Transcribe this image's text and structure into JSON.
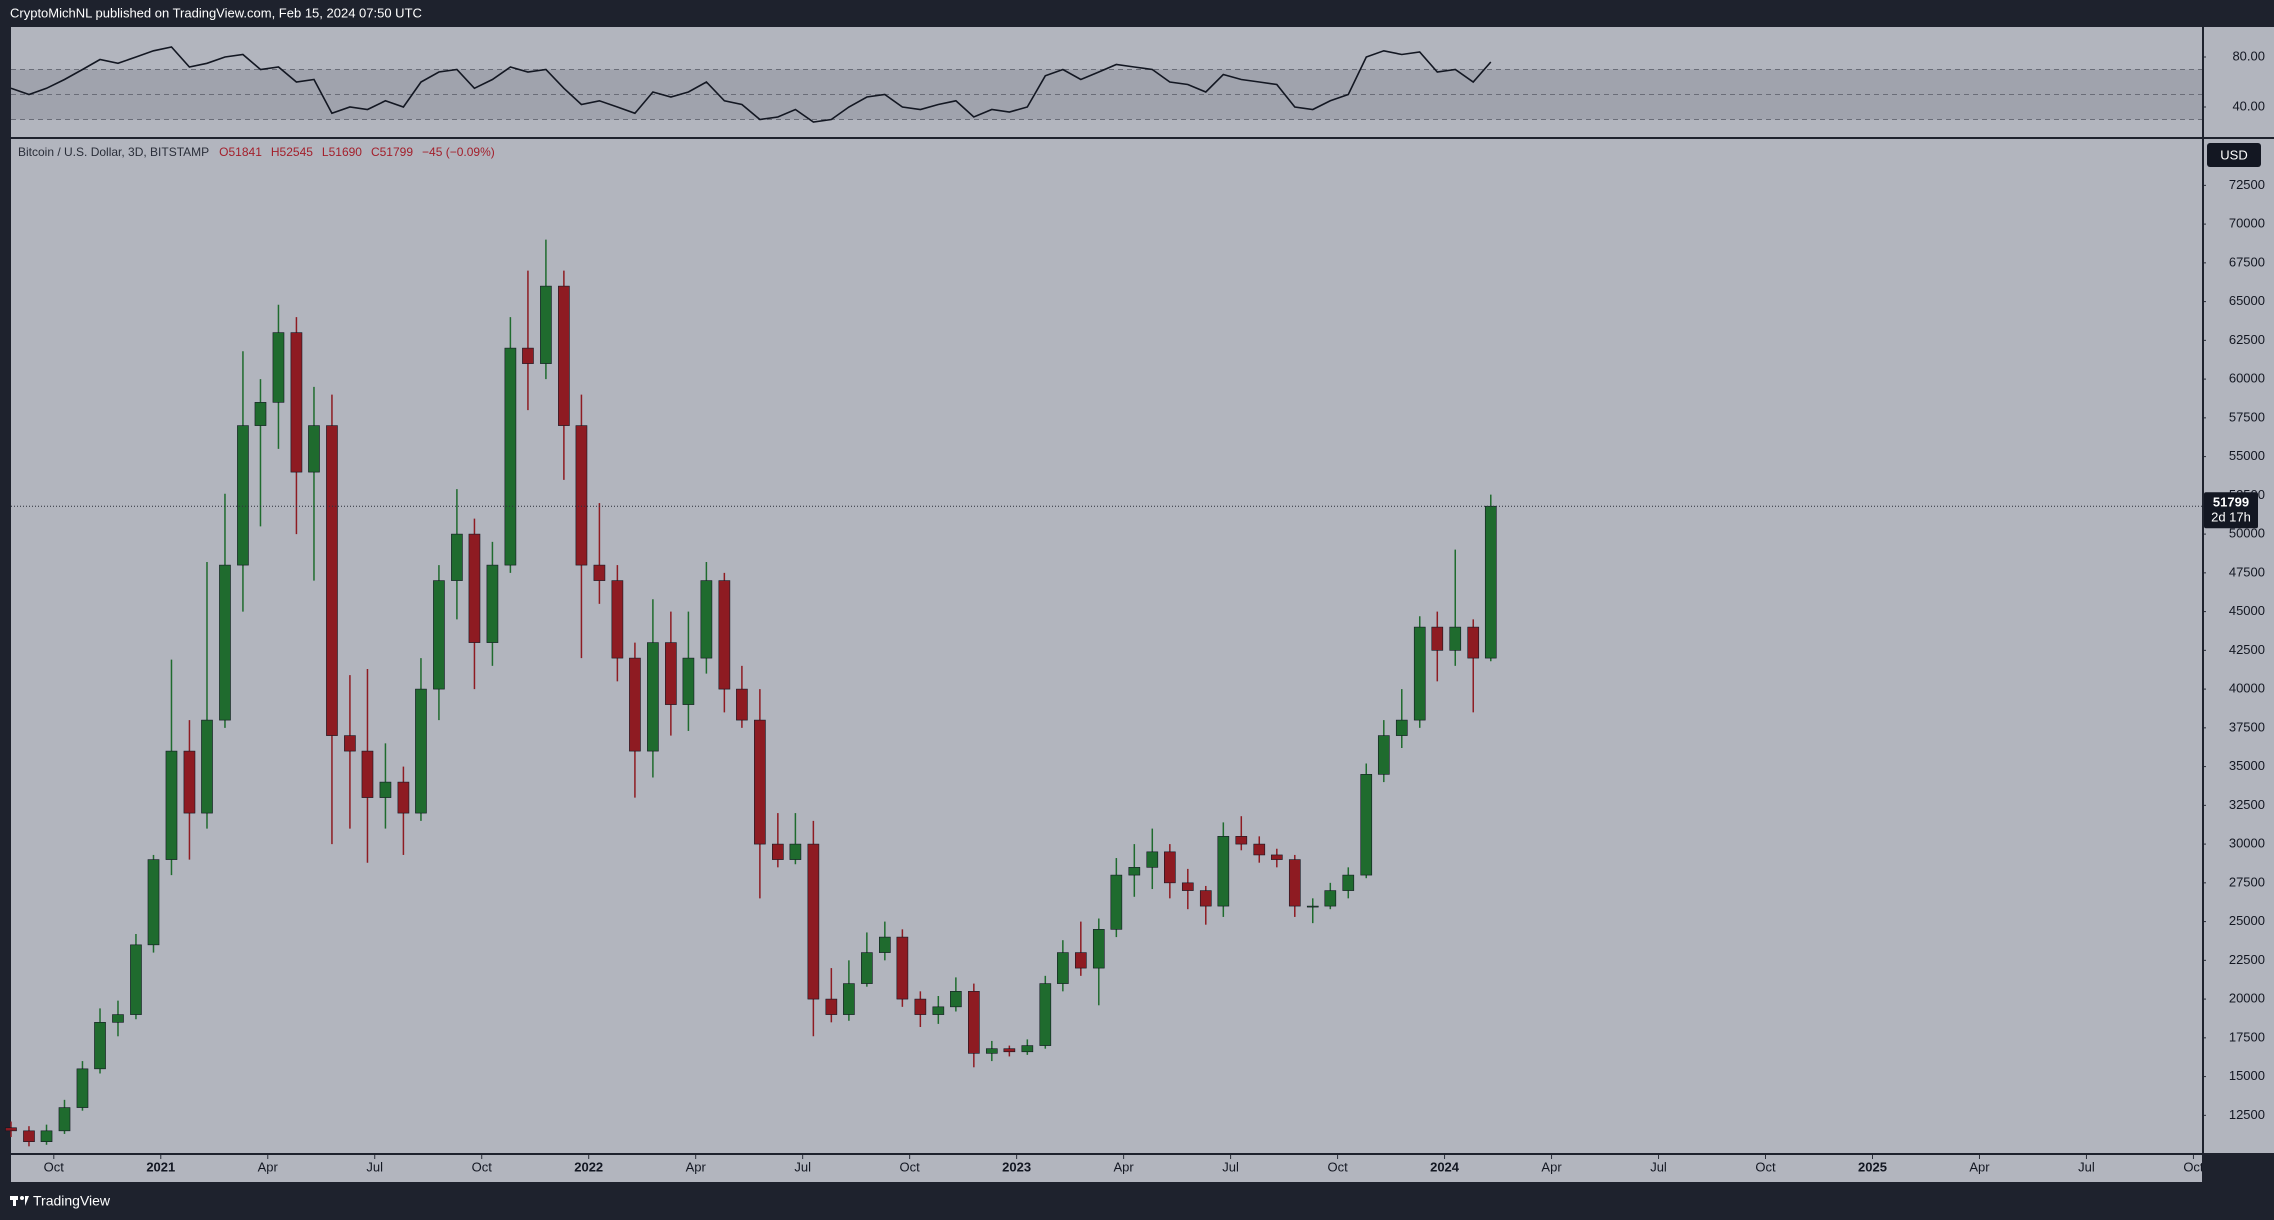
{
  "header": {
    "text": "CryptoMichNL published on TradingView.com, Feb 15, 2024 07:50 UTC"
  },
  "footer": {
    "brand": "TradingView"
  },
  "chart_data": [
    {
      "type": "candlestick",
      "legend_title": "Bitcoin / U.S. Dollar, 3D, BITSTAMP",
      "legend_values": [
        "O51841",
        "H52545",
        "L51690",
        "C51799",
        "−45 (−0.09%)"
      ],
      "currency": "USD",
      "up_color": "#1f6b2e",
      "down_color": "#8e1b22",
      "x": [
        2020.65,
        2020.692,
        2020.733,
        2020.775,
        2020.817,
        2020.858,
        2020.9,
        2020.942,
        2020.983,
        2021.025,
        2021.067,
        2021.108,
        2021.15,
        2021.192,
        2021.233,
        2021.275,
        2021.317,
        2021.358,
        2021.4,
        2021.442,
        2021.483,
        2021.525,
        2021.567,
        2021.608,
        2021.65,
        2021.692,
        2021.733,
        2021.775,
        2021.817,
        2021.858,
        2021.9,
        2021.942,
        2021.983,
        2022.025,
        2022.067,
        2022.108,
        2022.15,
        2022.192,
        2022.233,
        2022.275,
        2022.317,
        2022.358,
        2022.4,
        2022.442,
        2022.483,
        2022.525,
        2022.567,
        2022.608,
        2022.65,
        2022.692,
        2022.733,
        2022.775,
        2022.817,
        2022.858,
        2022.9,
        2022.942,
        2022.983,
        2023.025,
        2023.067,
        2023.108,
        2023.15,
        2023.192,
        2023.233,
        2023.275,
        2023.317,
        2023.358,
        2023.4,
        2023.442,
        2023.483,
        2023.525,
        2023.567,
        2023.608,
        2023.65,
        2023.692,
        2023.733,
        2023.775,
        2023.817,
        2023.858,
        2023.9,
        2023.942,
        2023.983,
        2024.025,
        2024.067,
        2024.108
      ],
      "open": [
        11700,
        11500,
        10800,
        11500,
        13000,
        15500,
        18500,
        19000,
        23500,
        29000,
        36000,
        32000,
        38000,
        48000,
        57000,
        58500,
        63000,
        54000,
        57000,
        37000,
        36000,
        33000,
        34000,
        32000,
        40000,
        47000,
        50000,
        43000,
        48000,
        62000,
        61000,
        66000,
        57000,
        48000,
        47000,
        42000,
        36000,
        43000,
        39000,
        42000,
        47000,
        40000,
        38000,
        30000,
        29000,
        30000,
        20000,
        19000,
        21000,
        23000,
        24000,
        20000,
        19000,
        19500,
        20500,
        16500,
        16800,
        16600,
        17000,
        21000,
        23000,
        22000,
        24500,
        28000,
        28500,
        29500,
        27500,
        27000,
        26000,
        30500,
        30000,
        29300,
        29000,
        26000,
        26000,
        27000,
        28000,
        34500,
        37000,
        38000,
        44000,
        42500,
        44000,
        42000
      ],
      "high": [
        12100,
        11800,
        11900,
        13500,
        16000,
        19400,
        19900,
        24200,
        29300,
        41900,
        38000,
        48200,
        52600,
        61800,
        60000,
        64800,
        64000,
        59500,
        59000,
        40900,
        41300,
        36500,
        35000,
        42000,
        48000,
        52900,
        51000,
        49500,
        64000,
        67000,
        69000,
        67000,
        59000,
        52000,
        48000,
        43000,
        45800,
        45000,
        45000,
        48200,
        47500,
        41500,
        40000,
        32000,
        32000,
        31500,
        22000,
        22500,
        24300,
        25000,
        24500,
        20500,
        20200,
        21400,
        21000,
        17300,
        17000,
        17400,
        21500,
        23800,
        25000,
        25200,
        29100,
        30000,
        31000,
        30000,
        28400,
        27300,
        31400,
        31800,
        30500,
        29700,
        29300,
        26500,
        27500,
        28500,
        35200,
        38000,
        40000,
        44700,
        45000,
        49000,
        44500,
        52545
      ],
      "low": [
        11100,
        10500,
        10600,
        11300,
        12800,
        15200,
        17600,
        18700,
        23000,
        28000,
        29000,
        31000,
        37500,
        45000,
        50500,
        55500,
        50000,
        47000,
        30000,
        31000,
        28800,
        31000,
        29300,
        31500,
        38000,
        44500,
        40000,
        41500,
        47500,
        58000,
        60000,
        53500,
        42000,
        45500,
        40500,
        33000,
        34300,
        37000,
        37300,
        41000,
        38500,
        37500,
        26500,
        28500,
        28700,
        17600,
        18500,
        18600,
        20800,
        22500,
        19500,
        18200,
        18400,
        19200,
        15600,
        16000,
        16300,
        16400,
        16800,
        20500,
        21500,
        19600,
        24000,
        26600,
        27100,
        26500,
        25800,
        24800,
        25300,
        29600,
        28800,
        28500,
        25300,
        24900,
        25800,
        26500,
        27800,
        34000,
        36200,
        37500,
        40500,
        41500,
        38500,
        41800
      ],
      "close": [
        11500,
        10800,
        11500,
        13000,
        15500,
        18500,
        19000,
        23500,
        29000,
        36000,
        32000,
        38000,
        48000,
        57000,
        58500,
        63000,
        54000,
        57000,
        37000,
        36000,
        33000,
        34000,
        32000,
        40000,
        47000,
        50000,
        43000,
        48000,
        62000,
        61000,
        66000,
        57000,
        48000,
        47000,
        42000,
        36000,
        43000,
        39000,
        42000,
        47000,
        40000,
        38000,
        30000,
        29000,
        30000,
        20000,
        19000,
        21000,
        23000,
        24000,
        20000,
        19000,
        19500,
        20500,
        16500,
        16800,
        16600,
        17000,
        21000,
        23000,
        22000,
        24500,
        28000,
        28500,
        29500,
        27500,
        27000,
        26000,
        30500,
        30000,
        29300,
        29000,
        26000,
        26000,
        27000,
        28000,
        34500,
        37000,
        38000,
        44000,
        42500,
        44000,
        42000,
        51799
      ],
      "xlim": [
        2020.65,
        2025.77
      ],
      "xticks": [
        {
          "value": 2020.75,
          "label": "Oct"
        },
        2021,
        {
          "value": 2021.25,
          "label": "Apr"
        },
        {
          "value": 2021.5,
          "label": "Jul"
        },
        {
          "value": 2021.75,
          "label": "Oct"
        },
        2022,
        {
          "value": 2022.25,
          "label": "Apr"
        },
        {
          "value": 2022.5,
          "label": "Jul"
        },
        {
          "value": 2022.75,
          "label": "Oct"
        },
        2023,
        {
          "value": 2023.25,
          "label": "Apr"
        },
        {
          "value": 2023.5,
          "label": "Jul"
        },
        {
          "value": 2023.75,
          "label": "Oct"
        },
        2024,
        {
          "value": 2024.25,
          "label": "Apr"
        },
        {
          "value": 2024.5,
          "label": "Jul"
        },
        {
          "value": 2024.75,
          "label": "Oct"
        },
        2025,
        {
          "value": 2025.25,
          "label": "Apr"
        },
        {
          "value": 2025.5,
          "label": "Jul"
        },
        {
          "value": 2025.75,
          "label": "Oct"
        }
      ],
      "ylim": [
        10070,
        75491
      ],
      "yticks": [
        12500,
        15000,
        17500,
        20000,
        22500,
        25000,
        27500,
        30000,
        32500,
        35000,
        37500,
        40000,
        42500,
        45000,
        47500,
        50000,
        52500,
        55000,
        57500,
        60000,
        62500,
        65000,
        67500,
        70000,
        72500
      ],
      "last_price": 51799,
      "countdown": "2d 17h"
    },
    {
      "type": "line",
      "color": "#131722",
      "x": [
        2020.65,
        2020.692,
        2020.733,
        2020.775,
        2020.817,
        2020.858,
        2020.9,
        2020.942,
        2020.983,
        2021.025,
        2021.067,
        2021.108,
        2021.15,
        2021.192,
        2021.233,
        2021.275,
        2021.317,
        2021.358,
        2021.4,
        2021.442,
        2021.483,
        2021.525,
        2021.567,
        2021.608,
        2021.65,
        2021.692,
        2021.733,
        2021.775,
        2021.817,
        2021.858,
        2021.9,
        2021.942,
        2021.983,
        2022.025,
        2022.067,
        2022.108,
        2022.15,
        2022.192,
        2022.233,
        2022.275,
        2022.317,
        2022.358,
        2022.4,
        2022.442,
        2022.483,
        2022.525,
        2022.567,
        2022.608,
        2022.65,
        2022.692,
        2022.733,
        2022.775,
        2022.817,
        2022.858,
        2022.9,
        2022.942,
        2022.983,
        2023.025,
        2023.067,
        2023.108,
        2023.15,
        2023.192,
        2023.233,
        2023.275,
        2023.317,
        2023.358,
        2023.4,
        2023.442,
        2023.483,
        2023.525,
        2023.567,
        2023.608,
        2023.65,
        2023.692,
        2023.733,
        2023.775,
        2023.817,
        2023.858,
        2023.9,
        2023.942,
        2023.983,
        2024.025,
        2024.067,
        2024.108
      ],
      "values": [
        55,
        50,
        55,
        62,
        70,
        78,
        75,
        80,
        85,
        88,
        72,
        75,
        80,
        82,
        70,
        72,
        60,
        62,
        35,
        40,
        38,
        45,
        40,
        60,
        68,
        70,
        55,
        62,
        72,
        68,
        70,
        55,
        42,
        45,
        40,
        35,
        52,
        48,
        52,
        60,
        45,
        42,
        30,
        32,
        38,
        28,
        30,
        40,
        48,
        50,
        40,
        38,
        42,
        45,
        32,
        38,
        36,
        40,
        65,
        70,
        62,
        68,
        74,
        72,
        70,
        60,
        58,
        52,
        66,
        62,
        60,
        58,
        40,
        38,
        45,
        50,
        80,
        85,
        82,
        84,
        68,
        70,
        60,
        76
      ],
      "bands": [
        30,
        50,
        70
      ],
      "xlim": [
        2020.65,
        2025.77
      ],
      "ylim": [
        16,
        104
      ],
      "yticks": [
        {
          "value": 40,
          "label": "40.00"
        },
        {
          "value": 80,
          "label": "80.00"
        }
      ]
    }
  ]
}
